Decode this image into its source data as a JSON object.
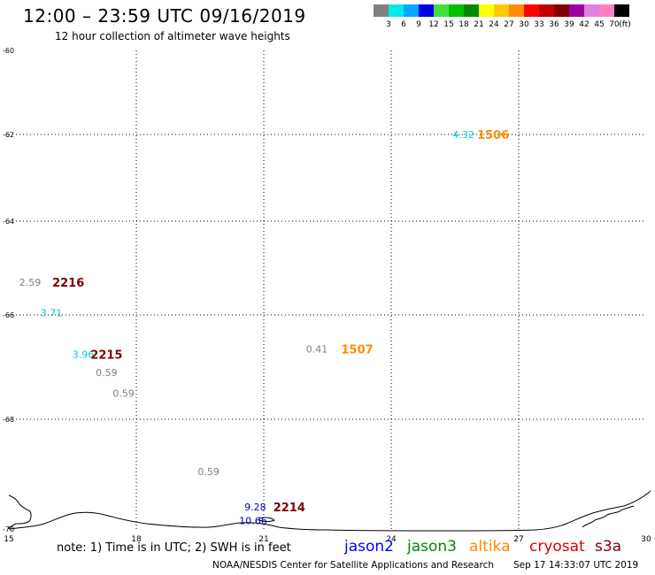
{
  "header": {
    "title": "12:00 – 23:59 UTC 09/16/2019",
    "subtitle": "12 hour collection of altimeter wave heights"
  },
  "legend": {
    "unit": "(ft)",
    "items": [
      {
        "label": "3",
        "color": "#808080"
      },
      {
        "label": "6",
        "color": "#00eaea"
      },
      {
        "label": "9",
        "color": "#00a8ff"
      },
      {
        "label": "12",
        "color": "#0000e0"
      },
      {
        "label": "15",
        "color": "#40e040"
      },
      {
        "label": "18",
        "color": "#00c000"
      },
      {
        "label": "21",
        "color": "#008800"
      },
      {
        "label": "24",
        "color": "#ffff00"
      },
      {
        "label": "27",
        "color": "#ffc800"
      },
      {
        "label": "30",
        "color": "#ff8c00"
      },
      {
        "label": "33",
        "color": "#ff0000"
      },
      {
        "label": "36",
        "color": "#c00000"
      },
      {
        "label": "39",
        "color": "#800000"
      },
      {
        "label": "42",
        "color": "#a000a0"
      },
      {
        "label": "45",
        "color": "#e080e0"
      },
      {
        "label": "70",
        "color": "#ff80c0"
      },
      {
        "label": "",
        "color": "#000000"
      }
    ]
  },
  "axes": {
    "lon_ticks": [
      {
        "lon": 15,
        "label": "15"
      },
      {
        "lon": 18,
        "label": "18"
      },
      {
        "lon": 21,
        "label": "21"
      },
      {
        "lon": 24,
        "label": "24"
      },
      {
        "lon": 27,
        "label": "27"
      },
      {
        "lon": 30,
        "label": "30"
      }
    ],
    "lat_ticks": [
      {
        "lat": -60,
        "label": "-60"
      },
      {
        "lat": -62,
        "label": "-62"
      },
      {
        "lat": -64,
        "label": "-64"
      },
      {
        "lat": -66,
        "label": "-66"
      },
      {
        "lat": -68,
        "label": "-68"
      },
      {
        "lat": -70,
        "label": "-70"
      }
    ],
    "lon_range": [
      15,
      30
    ],
    "lat_range": [
      -70,
      -60
    ]
  },
  "observations": [
    {
      "lon": 25.7,
      "lat": -62.0,
      "swh": "4.32",
      "color": "#00cccc"
    },
    {
      "lon": 15.5,
      "lat": -65.3,
      "swh": "2.59",
      "color": "#808080"
    },
    {
      "lon": 16.0,
      "lat": -65.95,
      "swh": "3.71",
      "color": "#00cccc"
    },
    {
      "lon": 16.75,
      "lat": -66.75,
      "swh": "3.96",
      "color": "#00cccc"
    },
    {
      "lon": 17.3,
      "lat": -67.1,
      "swh": "0.59",
      "color": "#808080"
    },
    {
      "lon": 17.7,
      "lat": -67.5,
      "swh": "0.59",
      "color": "#808080"
    },
    {
      "lon": 22.25,
      "lat": -66.65,
      "swh": "0.41",
      "color": "#808080"
    },
    {
      "lon": 19.7,
      "lat": -68.95,
      "swh": "0.59",
      "color": "#808080"
    },
    {
      "lon": 20.8,
      "lat": -69.6,
      "swh": "9.28",
      "color": "#0000c0"
    },
    {
      "lon": 20.75,
      "lat": -69.85,
      "swh": "10.66",
      "color": "#0000c0"
    }
  ],
  "time_labels": [
    {
      "lon": 26.4,
      "lat": -62.0,
      "time": "1506",
      "color": "#ff8c00"
    },
    {
      "lon": 16.4,
      "lat": -65.3,
      "time": "2216",
      "color": "#800000"
    },
    {
      "lon": 17.3,
      "lat": -66.75,
      "time": "2215",
      "color": "#800000"
    },
    {
      "lon": 23.2,
      "lat": -66.65,
      "time": "1507",
      "color": "#ff8c00"
    },
    {
      "lon": 21.6,
      "lat": -69.6,
      "time": "2214",
      "color": "#800000"
    }
  ],
  "coastline": "Antarctica",
  "footer": {
    "note": "note:  1) Time is in UTC;  2) SWH is in feet",
    "satellites": [
      {
        "name": "jason2",
        "color": "#0000ff"
      },
      {
        "name": "jason3",
        "color": "#008800"
      },
      {
        "name": "altika",
        "color": "#ff8c00"
      },
      {
        "name": "cryosat",
        "color": "#dd0000"
      },
      {
        "name": "s3a",
        "color": "#800000"
      }
    ],
    "credit": "NOAA/NESDIS Center for Satellite Applications and Research",
    "timestamp": "Sep 17 14:33:07 UTC 2019"
  }
}
